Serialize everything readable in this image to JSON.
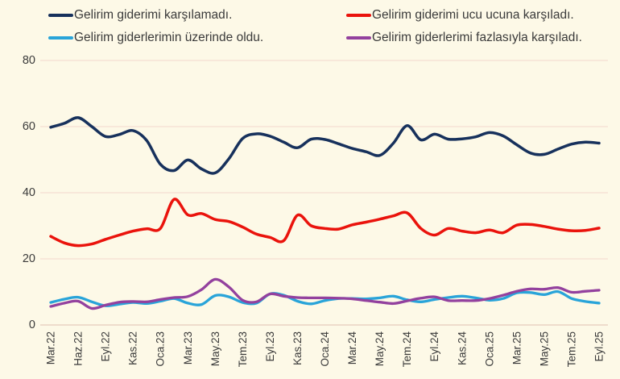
{
  "chart_data": {
    "type": "line",
    "title": "",
    "xlabel": "",
    "ylabel": "",
    "ylim": [
      0,
      80
    ],
    "y_ticks": [
      0,
      20,
      40,
      60,
      80
    ],
    "grid": true,
    "legend_position": "top",
    "n_points": 41,
    "tick_every": 2,
    "x_tick_labels": [
      "Mar.22",
      "Haz.22",
      "Eyl.22",
      "Kas.22",
      "Oca.23",
      "Mar.23",
      "May.23",
      "Tem.23",
      "Eyl.23",
      "Kas.23",
      "Oca.24",
      "Mar.24",
      "May.24",
      "Tem.24",
      "Eyl.24",
      "Kas.24",
      "Oca.25",
      "Mar.25",
      "May.25",
      "Tem.25",
      "Eyl.25"
    ],
    "background_color": "#fdf9e7",
    "gridline_color": "#f5ddd3",
    "baseline_color": "#e6cabb",
    "text_color": "#3a3a3a",
    "series": [
      {
        "name": "Gelirim giderimi karşılamadı.",
        "color": "#17315c",
        "line_width": 3.5,
        "values": [
          59.8,
          61.0,
          62.7,
          60.0,
          57.0,
          57.6,
          58.8,
          55.8,
          48.6,
          46.7,
          49.9,
          47.2,
          46.0,
          50.3,
          56.4,
          57.8,
          57.1,
          55.3,
          53.6,
          56.2,
          56.1,
          54.8,
          53.4,
          52.4,
          51.3,
          55.0,
          60.3,
          56.0,
          57.7,
          56.2,
          56.3,
          56.9,
          58.2,
          57.2,
          54.5,
          52.0,
          51.6,
          53.2,
          54.7,
          55.3,
          55.0
        ]
      },
      {
        "name": "Gelirim giderimi ucu ucuna karşıladı.",
        "color": "#ea130c",
        "line_width": 3.5,
        "values": [
          26.8,
          24.8,
          24.0,
          24.5,
          25.9,
          27.2,
          28.4,
          29.1,
          29.2,
          38.0,
          33.3,
          33.7,
          31.9,
          31.3,
          29.6,
          27.5,
          26.5,
          25.5,
          33.2,
          30.0,
          29.2,
          29.0,
          30.3,
          31.1,
          32.0,
          33.0,
          33.9,
          29.2,
          27.2,
          29.2,
          28.4,
          27.9,
          28.7,
          27.9,
          30.2,
          30.4,
          29.8,
          29.0,
          28.5,
          28.6,
          29.3
        ]
      },
      {
        "name": "Gelirim giderlerimin üzerinde oldu.",
        "color": "#29a4d9",
        "line_width": 3.3,
        "values": [
          6.8,
          7.8,
          8.4,
          7.0,
          5.8,
          6.3,
          6.8,
          6.5,
          7.2,
          8.0,
          6.6,
          6.2,
          8.9,
          8.5,
          6.8,
          6.6,
          9.4,
          9.0,
          7.2,
          6.4,
          7.4,
          8.0,
          8.0,
          7.9,
          8.2,
          8.7,
          7.6,
          7.0,
          7.7,
          8.3,
          8.7,
          8.2,
          7.5,
          8.0,
          9.7,
          9.8,
          9.2,
          10.1,
          8.0,
          7.1,
          6.6
        ]
      },
      {
        "name": "Gelirim giderlerimi fazlasıyla karşıladı.",
        "color": "#93419e",
        "line_width": 3.3,
        "values": [
          5.6,
          6.6,
          7.2,
          5.0,
          6.0,
          6.9,
          7.1,
          7.0,
          7.7,
          8.3,
          8.6,
          10.7,
          13.8,
          11.5,
          7.5,
          7.0,
          9.4,
          8.7,
          8.3,
          8.2,
          8.2,
          8.1,
          7.9,
          7.4,
          6.9,
          6.5,
          7.3,
          8.1,
          8.5,
          7.4,
          7.4,
          7.4,
          8.0,
          9.0,
          10.2,
          10.9,
          10.8,
          11.3,
          9.9,
          10.2,
          10.5
        ]
      }
    ]
  }
}
